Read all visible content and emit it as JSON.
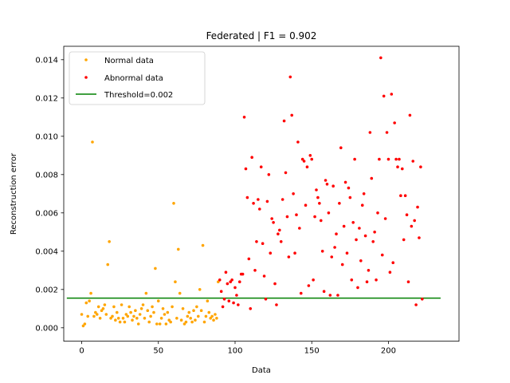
{
  "chart_data": {
    "type": "scatter",
    "title": "Federated | F1 = 0.902",
    "xlabel": "Data",
    "ylabel": "Reconstruction error",
    "xlim": [
      -11.7,
      246
    ],
    "ylim": [
      -0.0007,
      0.0147
    ],
    "x_ticks": [
      0,
      50,
      100,
      150,
      200
    ],
    "y_ticks": [
      0.0,
      0.002,
      0.004,
      0.006,
      0.008,
      0.01,
      0.012,
      0.014
    ],
    "y_tick_labels": [
      "0.000",
      "0.002",
      "0.004",
      "0.006",
      "0.008",
      "0.010",
      "0.012",
      "0.014"
    ],
    "grid": false,
    "legend_position": "top-left",
    "legend": [
      "Normal data",
      "Abnormal data",
      "Threshold=0.002"
    ],
    "series": [
      {
        "name": "Normal data",
        "kind": "points",
        "color": "#ffa500",
        "points": [
          [
            0,
            0.0007
          ],
          [
            1,
            0.0001
          ],
          [
            2,
            0.0002
          ],
          [
            3,
            0.0013
          ],
          [
            4,
            0.0006
          ],
          [
            5,
            0.0014
          ],
          [
            6,
            0.0018
          ],
          [
            7,
            0.0097
          ],
          [
            8,
            0.0006
          ],
          [
            9,
            0.0008
          ],
          [
            10,
            0.0007
          ],
          [
            11,
            0.0011
          ],
          [
            12,
            0.0005
          ],
          [
            13,
            0.0009
          ],
          [
            14,
            0.001
          ],
          [
            15,
            0.0012
          ],
          [
            16,
            0.0007
          ],
          [
            17,
            0.0033
          ],
          [
            18,
            0.0045
          ],
          [
            19,
            0.0005
          ],
          [
            20,
            0.0006
          ],
          [
            21,
            0.0011
          ],
          [
            22,
            0.0004
          ],
          [
            23,
            0.0008
          ],
          [
            24,
            0.0005
          ],
          [
            25,
            0.0003
          ],
          [
            26,
            0.0012
          ],
          [
            27,
            0.0005
          ],
          [
            28,
            0.0003
          ],
          [
            29,
            0.0007
          ],
          [
            30,
            0.0006
          ],
          [
            31,
            0.0011
          ],
          [
            32,
            0.0008
          ],
          [
            33,
            0.0004
          ],
          [
            34,
            0.0006
          ],
          [
            35,
            0.0009
          ],
          [
            36,
            0.0005
          ],
          [
            37,
            0.0002
          ],
          [
            38,
            0.0007
          ],
          [
            39,
            0.001
          ],
          [
            40,
            0.0012
          ],
          [
            41,
            0.0005
          ],
          [
            42,
            0.0018
          ],
          [
            43,
            0.0009
          ],
          [
            44,
            0.0003
          ],
          [
            45,
            0.0006
          ],
          [
            46,
            0.0011
          ],
          [
            47,
            0.0008
          ],
          [
            48,
            0.0031
          ],
          [
            49,
            0.0002
          ],
          [
            50,
            0.0014
          ],
          [
            51,
            0.0002
          ],
          [
            52,
            0.0005
          ],
          [
            53,
            0.001
          ],
          [
            54,
            0.0007
          ],
          [
            55,
            0.0002
          ],
          [
            56,
            0.0008
          ],
          [
            57,
            0.0004
          ],
          [
            58,
            0.0003
          ],
          [
            59,
            0.0011
          ],
          [
            60,
            0.0065
          ],
          [
            61,
            0.0024
          ],
          [
            62,
            0.0005
          ],
          [
            63,
            0.0041
          ],
          [
            64,
            0.0018
          ],
          [
            65,
            0.0004
          ],
          [
            66,
            0.001
          ],
          [
            67,
            0.0002
          ],
          [
            68,
            0.0003
          ],
          [
            69,
            0.0006
          ],
          [
            70,
            0.0008
          ],
          [
            71,
            0.0005
          ],
          [
            72,
            0.0003
          ],
          [
            73,
            0.0009
          ],
          [
            74,
            0.0004
          ],
          [
            75,
            0.0011
          ],
          [
            76,
            0.0006
          ],
          [
            77,
            0.002
          ],
          [
            78,
            0.0009
          ],
          [
            79,
            0.0043
          ],
          [
            80,
            0.0003
          ],
          [
            81,
            0.0006
          ],
          [
            82,
            0.0014
          ],
          [
            83,
            0.0008
          ],
          [
            84,
            0.0005
          ],
          [
            85,
            0.0006
          ],
          [
            86,
            0.0004
          ],
          [
            87,
            0.0007
          ],
          [
            88,
            0.0005
          ],
          [
            89,
            0.0024
          ]
        ]
      },
      {
        "name": "Abnormal data",
        "kind": "points",
        "color": "#ff0000",
        "points": [
          [
            90,
            0.0025
          ],
          [
            91,
            0.0019
          ],
          [
            92,
            0.0011
          ],
          [
            93,
            0.0015
          ],
          [
            94,
            0.0029
          ],
          [
            95,
            0.0023
          ],
          [
            96,
            0.0014
          ],
          [
            97,
            0.0024
          ],
          [
            98,
            0.0025
          ],
          [
            99,
            0.0013
          ],
          [
            100,
            0.0021
          ],
          [
            101,
            0.0017
          ],
          [
            102,
            0.0012
          ],
          [
            103,
            0.0024
          ],
          [
            104,
            0.0028
          ],
          [
            105,
            0.0028
          ],
          [
            106,
            0.011
          ],
          [
            107,
            0.0083
          ],
          [
            108,
            0.0068
          ],
          [
            109,
            0.0036
          ],
          [
            110,
            0.001
          ],
          [
            111,
            0.0089
          ],
          [
            112,
            0.0065
          ],
          [
            113,
            0.003
          ],
          [
            114,
            0.0045
          ],
          [
            115,
            0.0067
          ],
          [
            116,
            0.0062
          ],
          [
            117,
            0.0084
          ],
          [
            118,
            0.0044
          ],
          [
            119,
            0.0027
          ],
          [
            120,
            0.0015
          ],
          [
            121,
            0.0066
          ],
          [
            122,
            0.008
          ],
          [
            123,
            0.0039
          ],
          [
            124,
            0.0057
          ],
          [
            125,
            0.0055
          ],
          [
            126,
            0.0023
          ],
          [
            127,
            0.0012
          ],
          [
            128,
            0.0049
          ],
          [
            129,
            0.0051
          ],
          [
            130,
            0.0045
          ],
          [
            131,
            0.0067
          ],
          [
            132,
            0.0108
          ],
          [
            133,
            0.0081
          ],
          [
            134,
            0.0058
          ],
          [
            135,
            0.0037
          ],
          [
            136,
            0.0131
          ],
          [
            137,
            0.0111
          ],
          [
            138,
            0.007
          ],
          [
            139,
            0.0039
          ],
          [
            140,
            0.0059
          ],
          [
            141,
            0.0097
          ],
          [
            142,
            0.0052
          ],
          [
            143,
            0.0018
          ],
          [
            144,
            0.0088
          ],
          [
            145,
            0.0087
          ],
          [
            146,
            0.0064
          ],
          [
            147,
            0.0084
          ],
          [
            148,
            0.0022
          ],
          [
            149,
            0.009
          ],
          [
            150,
            0.0088
          ],
          [
            151,
            0.0025
          ],
          [
            152,
            0.0058
          ],
          [
            153,
            0.0072
          ],
          [
            154,
            0.0068
          ],
          [
            155,
            0.0065
          ],
          [
            156,
            0.0056
          ],
          [
            157,
            0.004
          ],
          [
            158,
            0.0019
          ],
          [
            159,
            0.0077
          ],
          [
            160,
            0.0075
          ],
          [
            161,
            0.006
          ],
          [
            162,
            0.0017
          ],
          [
            163,
            0.0037
          ],
          [
            164,
            0.0074
          ],
          [
            165,
            0.0042
          ],
          [
            166,
            0.0049
          ],
          [
            167,
            0.0017
          ],
          [
            168,
            0.0065
          ],
          [
            169,
            0.0094
          ],
          [
            170,
            0.0033
          ],
          [
            171,
            0.0053
          ],
          [
            172,
            0.0076
          ],
          [
            173,
            0.0039
          ],
          [
            174,
            0.0073
          ],
          [
            175,
            0.0068
          ],
          [
            176,
            0.0025
          ],
          [
            177,
            0.0055
          ],
          [
            178,
            0.0088
          ],
          [
            179,
            0.0046
          ],
          [
            180,
            0.0021
          ],
          [
            181,
            0.0052
          ],
          [
            182,
            0.0035
          ],
          [
            183,
            0.0064
          ],
          [
            184,
            0.007
          ],
          [
            185,
            0.0048
          ],
          [
            186,
            0.0024
          ],
          [
            187,
            0.003
          ],
          [
            188,
            0.0102
          ],
          [
            189,
            0.0078
          ],
          [
            190,
            0.0045
          ],
          [
            191,
            0.005
          ],
          [
            192,
            0.0025
          ],
          [
            193,
            0.006
          ],
          [
            194,
            0.0088
          ],
          [
            195,
            0.0141
          ],
          [
            196,
            0.0038
          ],
          [
            197,
            0.0121
          ],
          [
            198,
            0.0057
          ],
          [
            199,
            0.0102
          ],
          [
            200,
            0.0088
          ],
          [
            201,
            0.0029
          ],
          [
            202,
            0.0122
          ],
          [
            203,
            0.0034
          ],
          [
            204,
            0.0107
          ],
          [
            205,
            0.0088
          ],
          [
            206,
            0.0084
          ],
          [
            207,
            0.0088
          ],
          [
            208,
            0.0069
          ],
          [
            209,
            0.0083
          ],
          [
            210,
            0.0046
          ],
          [
            211,
            0.0069
          ],
          [
            212,
            0.0059
          ],
          [
            213,
            0.0024
          ],
          [
            214,
            0.0111
          ],
          [
            215,
            0.0053
          ],
          [
            216,
            0.0087
          ],
          [
            217,
            0.0056
          ],
          [
            218,
            0.0012
          ],
          [
            219,
            0.0063
          ],
          [
            220,
            0.0047
          ],
          [
            221,
            0.0084
          ],
          [
            222,
            0.0015
          ]
        ]
      },
      {
        "name": "Threshold=0.002",
        "kind": "line",
        "color": "#008000",
        "points": [
          [
            -9.7,
            0.00155
          ],
          [
            234,
            0.00155
          ]
        ]
      }
    ]
  }
}
